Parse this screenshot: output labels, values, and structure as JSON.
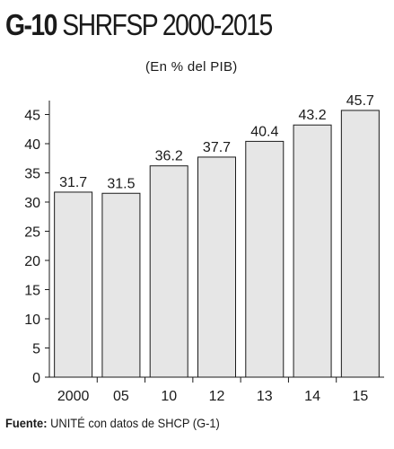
{
  "header": {
    "title_code": "G-10",
    "title_text": "SHRFSP 2000-2015",
    "subtitle": "(En % del PIB)"
  },
  "chart_data": {
    "type": "bar",
    "categories": [
      "2000",
      "05",
      "10",
      "12",
      "13",
      "14",
      "15"
    ],
    "values": [
      31.7,
      31.5,
      36.2,
      37.7,
      40.4,
      43.2,
      45.7
    ],
    "value_labels": [
      "31.7",
      "31.5",
      "36.2",
      "37.7",
      "40.4",
      "43.2",
      "45.7"
    ],
    "yticks": [
      0,
      5,
      10,
      15,
      20,
      25,
      30,
      35,
      40,
      45
    ],
    "ylim": [
      0,
      48
    ],
    "bar_color": "#e6e6e6",
    "grid": false,
    "legend": "none"
  },
  "footer": {
    "source_label": "Fuente:",
    "source_text": " UNITÉ con datos de SHCP (G-1)"
  }
}
